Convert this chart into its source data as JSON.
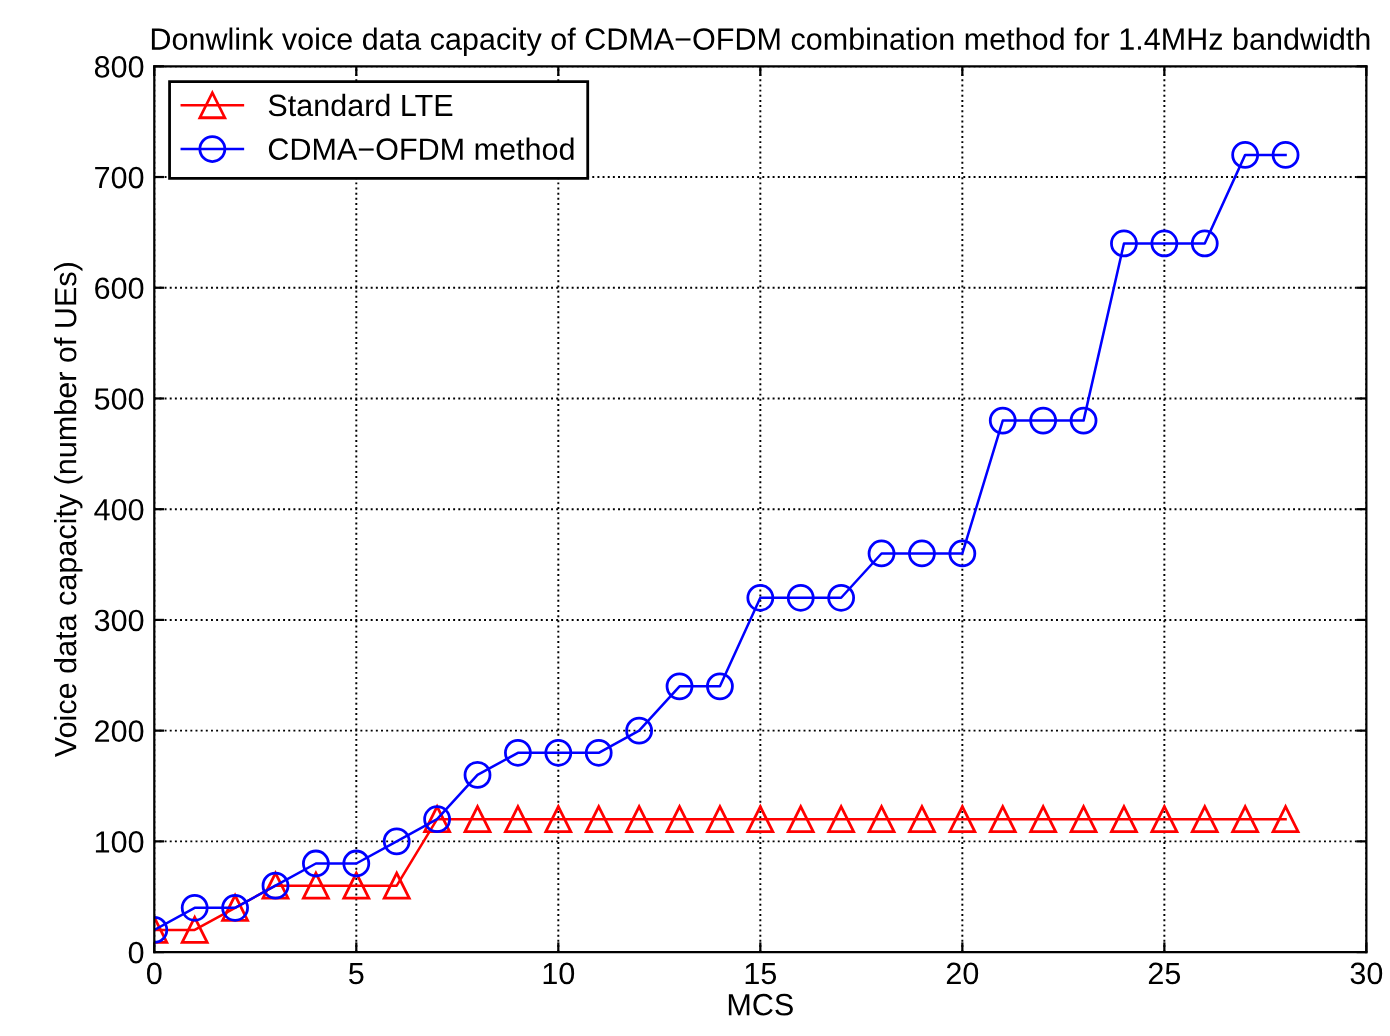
{
  "chart_data": {
    "type": "line",
    "title": "Donwlink voice data capacity of CDMA−OFDM combination method for 1.4MHz bandwidth",
    "xlabel": "MCS",
    "ylabel": "Voice data capacity (number of UEs)",
    "x": [
      0,
      1,
      2,
      3,
      4,
      5,
      6,
      7,
      8,
      9,
      10,
      11,
      12,
      13,
      14,
      15,
      16,
      17,
      18,
      19,
      20,
      21,
      22,
      23,
      24,
      25,
      26,
      27,
      28
    ],
    "series": [
      {
        "name": "Standard LTE",
        "color": "#ff0000",
        "marker": "triangle",
        "values": [
          20,
          20,
          40,
          60,
          60,
          60,
          60,
          120,
          120,
          120,
          120,
          120,
          120,
          120,
          120,
          120,
          120,
          120,
          120,
          120,
          120,
          120,
          120,
          120,
          120,
          120,
          120,
          120,
          120
        ]
      },
      {
        "name": "CDMA−OFDM method",
        "color": "#0000ff",
        "marker": "circle",
        "values": [
          20,
          40,
          40,
          60,
          80,
          80,
          100,
          120,
          160,
          180,
          180,
          180,
          200,
          240,
          240,
          320,
          320,
          320,
          360,
          360,
          360,
          480,
          480,
          480,
          640,
          640,
          640,
          720,
          720
        ]
      }
    ],
    "xlim": [
      0,
      30
    ],
    "xticks": [
      0,
      5,
      10,
      15,
      20,
      25,
      30
    ],
    "ylim": [
      0,
      800
    ],
    "yticks": [
      0,
      100,
      200,
      300,
      400,
      500,
      600,
      700,
      800
    ],
    "grid": true,
    "legend": "top left",
    "line_style": "solid"
  }
}
